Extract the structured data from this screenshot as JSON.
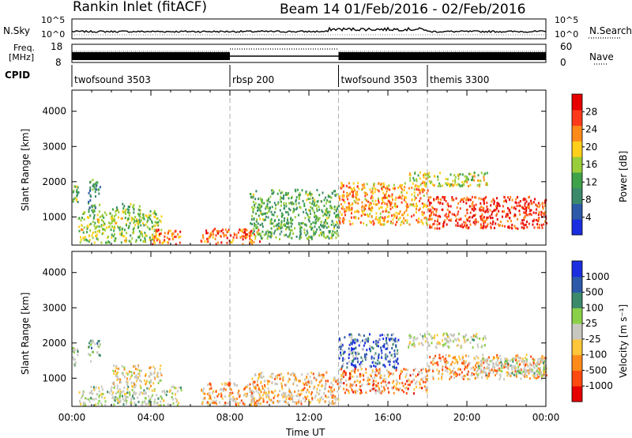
{
  "header": {
    "station_title": "Rankin Inlet (fitACF)",
    "beam_and_dates": "Beam 14  01/Feb/2016 - 02/Feb/2016"
  },
  "left_labels": {
    "nsky": "N.Sky",
    "freq_line1": "Freq.",
    "freq_line2": "[MHz]",
    "cpid": "CPID"
  },
  "right_labels": {
    "nsearch": "N.Search",
    "nave": "Nave"
  },
  "noise_panel": {
    "left_top_tick": "10^5",
    "left_bottom_tick": "10^0",
    "right_top_tick": "10^5",
    "right_bottom_tick": "10^0"
  },
  "freq_panel": {
    "left_ticks": [
      "18",
      "8"
    ],
    "right_ticks": [
      "60",
      "0"
    ]
  },
  "cpid_segments": [
    {
      "label": "twofsound 3503",
      "start_hour": 0,
      "end_hour": 8
    },
    {
      "label": "rbsp 200",
      "start_hour": 8,
      "end_hour": 13.5
    },
    {
      "label": "twofsound 3503",
      "start_hour": 13.5,
      "end_hour": 18
    },
    {
      "label": "themis 3300",
      "start_hour": 18,
      "end_hour": 24
    }
  ],
  "colors": {
    "scatter_gray": "#c8c8c0",
    "power_scale": [
      "#1a2ee0",
      "#2c5aa8",
      "#3c8a6c",
      "#3fa24a",
      "#9acd3a",
      "#ffcf1a",
      "#ff8a1a",
      "#ff3a1a",
      "#e60000"
    ],
    "velocity_scale": [
      "#e60000",
      "#ff4a10",
      "#ff8a1a",
      "#ffc63a",
      "#c8c8c0",
      "#8ad048",
      "#3c8a6c",
      "#2c5aa8",
      "#1a2ee0"
    ]
  },
  "chart_data": [
    {
      "type": "heatmap",
      "name": "power",
      "xlabel": "",
      "ylabel": "Slant Range [km]",
      "x_range_hours": [
        0,
        24
      ],
      "x_ticks": [],
      "ylim": [
        200,
        4600
      ],
      "y_ticks": [
        1000,
        2000,
        3000,
        4000
      ],
      "colorbar": {
        "label": "Power [dB]",
        "range": [
          0,
          32
        ],
        "ticks": [
          4,
          8,
          12,
          16,
          20,
          24,
          28
        ]
      },
      "regions": [
        {
          "hours": [
            0.0,
            0.3
          ],
          "range_km": [
            1400,
            1900
          ],
          "level": 0.4
        },
        {
          "hours": [
            0.8,
            1.4
          ],
          "range_km": [
            1200,
            2100
          ],
          "level": 0.35
        },
        {
          "hours": [
            2.0,
            3.5
          ],
          "range_km": [
            1150,
            1400
          ],
          "level": 0.45
        },
        {
          "hours": [
            0.3,
            4.5
          ],
          "range_km": [
            300,
            1200
          ],
          "level": 0.5
        },
        {
          "hours": [
            4.0,
            5.5
          ],
          "range_km": [
            250,
            700
          ],
          "level": 0.75
        },
        {
          "hours": [
            6.5,
            9.5
          ],
          "range_km": [
            250,
            700
          ],
          "level": 0.8
        },
        {
          "hours": [
            9.0,
            13.5
          ],
          "range_km": [
            400,
            1800
          ],
          "level": 0.4
        },
        {
          "hours": [
            13.5,
            18.0
          ],
          "range_km": [
            800,
            2000
          ],
          "level": 0.7
        },
        {
          "hours": [
            18.0,
            24.0
          ],
          "range_km": [
            700,
            1600
          ],
          "level": 0.85
        },
        {
          "hours": [
            17.0,
            21.0
          ],
          "range_km": [
            1900,
            2300
          ],
          "level": 0.55
        }
      ]
    },
    {
      "type": "heatmap",
      "name": "velocity",
      "xlabel": "Time UT",
      "ylabel": "Slant Range [km]",
      "x_range_hours": [
        0,
        24
      ],
      "x_ticks": [
        "00:00",
        "04:00",
        "08:00",
        "12:00",
        "16:00",
        "20:00",
        "00:00"
      ],
      "ylim": [
        200,
        4600
      ],
      "y_ticks": [
        1000,
        2000,
        3000,
        4000
      ],
      "colorbar": {
        "label": "Velocity [m s⁻¹]",
        "range": [
          -1500,
          1500
        ],
        "ticks": [
          "1000",
          "500",
          "100",
          "25",
          "-25",
          "-100",
          "-500",
          "-1000"
        ]
      },
      "regions": [
        {
          "hours": [
            0.0,
            0.3
          ],
          "range_km": [
            1400,
            1900
          ],
          "level": 0.6
        },
        {
          "hours": [
            0.8,
            1.4
          ],
          "range_km": [
            1500,
            2100
          ],
          "level": 0.65
        },
        {
          "hours": [
            2.0,
            4.5
          ],
          "range_km": [
            800,
            1400
          ],
          "level": 0.45
        },
        {
          "hours": [
            0.3,
            5.5
          ],
          "range_km": [
            250,
            800
          ],
          "level": 0.55
        },
        {
          "hours": [
            6.5,
            9.5
          ],
          "range_km": [
            250,
            900
          ],
          "level": 0.3
        },
        {
          "hours": [
            9.0,
            13.5
          ],
          "range_km": [
            300,
            1200
          ],
          "level": 0.35
        },
        {
          "hours": [
            13.5,
            16.5
          ],
          "range_km": [
            1300,
            2300
          ],
          "level": 0.85
        },
        {
          "hours": [
            13.5,
            18.0
          ],
          "range_km": [
            600,
            1300
          ],
          "level": 0.25
        },
        {
          "hours": [
            17.0,
            21.0
          ],
          "range_km": [
            1900,
            2300
          ],
          "level": 0.5
        },
        {
          "hours": [
            18.0,
            24.0
          ],
          "range_km": [
            1000,
            1700
          ],
          "level": 0.3
        },
        {
          "hours": [
            20.5,
            24.0
          ],
          "range_km": [
            1100,
            1600
          ],
          "level": 0.6
        }
      ]
    }
  ]
}
